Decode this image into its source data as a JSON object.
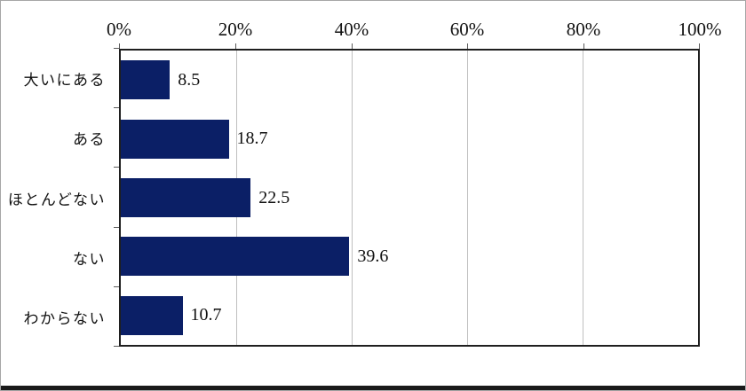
{
  "chart_data": {
    "type": "bar",
    "orientation": "horizontal",
    "title": "",
    "xlabel": "",
    "ylabel": "",
    "categories": [
      "大いにある",
      "ある",
      "ほとんどない",
      "ない",
      "わからない"
    ],
    "values": [
      8.5,
      18.7,
      22.5,
      39.6,
      10.7
    ],
    "x_tick_labels": [
      "0%",
      "20%",
      "40%",
      "60%",
      "80%",
      "100%"
    ],
    "xlim": [
      0,
      100
    ],
    "grid": "vertical gridlines every 20%, light gray",
    "legend": "none",
    "axis_position": "value axis on top, category axis on left",
    "bar_color": "#0b1f66",
    "gridline_color": "#bfbfbf",
    "plot_border_color": "#1f1f1f"
  }
}
